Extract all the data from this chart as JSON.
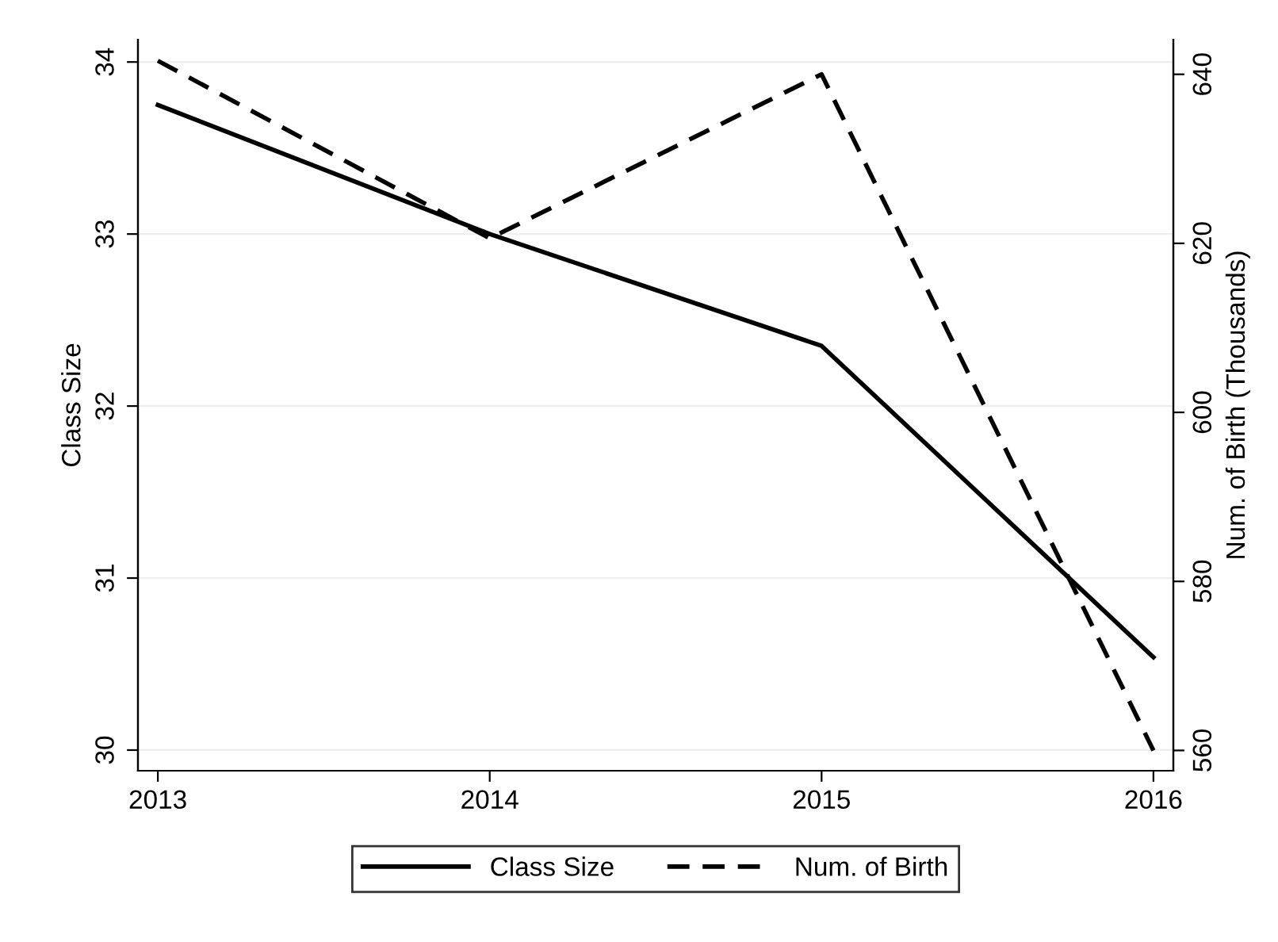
{
  "chart_data": {
    "type": "line",
    "ylabel": "Class Size",
    "y2label": "Num. of Birth (Thousands)",
    "x": [
      2013,
      2014,
      2015,
      2016
    ],
    "series": [
      {
        "name": "Class Size",
        "color": "#000000",
        "values": [
          33.75,
          33.0,
          32.35,
          30.54
        ],
        "line_style": "solid"
      },
      {
        "name": "Num. of Birth",
        "color": "#000000",
        "values": [
          641.6,
          620.6,
          640,
          560
        ],
        "line_style": "dashed",
        "axis": "y2"
      }
    ],
    "xlim": [
      2012.94,
      2016.06
    ],
    "xticks": [
      2013,
      2014,
      2015,
      2016
    ],
    "ylim": [
      29.88,
      34.13
    ],
    "yticks": [
      30,
      31,
      32,
      33,
      34
    ],
    "y2lim": [
      557.6,
      644.1
    ],
    "y2ticks": [
      560,
      580,
      600,
      620,
      640
    ],
    "grid": "y",
    "legend": "bottom",
    "marker": "none"
  }
}
